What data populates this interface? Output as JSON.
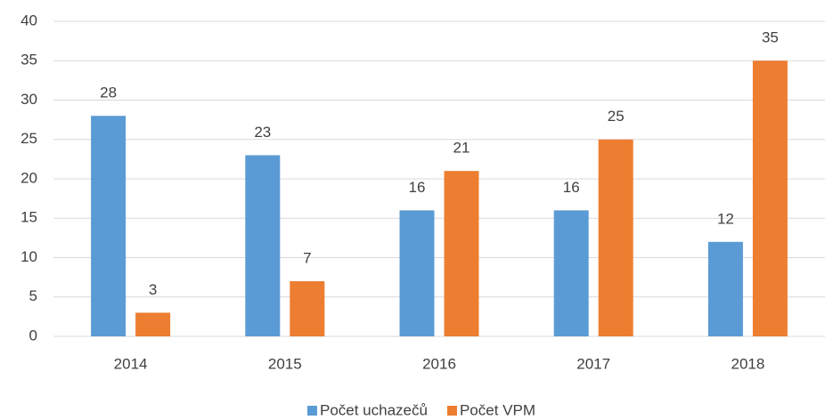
{
  "chart_data": {
    "type": "bar",
    "categories": [
      "2014",
      "2015",
      "2016",
      "2017",
      "2018"
    ],
    "series": [
      {
        "name": "Počet uchazečů",
        "color": "#5b9bd5",
        "values": [
          28,
          23,
          16,
          16,
          12
        ]
      },
      {
        "name": "Počet VPM",
        "color": "#ed7d31",
        "values": [
          3,
          7,
          21,
          25,
          35
        ]
      }
    ],
    "ylim": [
      0,
      40
    ],
    "yticks": [
      0,
      5,
      10,
      15,
      20,
      25,
      30,
      35,
      40
    ],
    "grid": true,
    "legend": "bottom"
  }
}
